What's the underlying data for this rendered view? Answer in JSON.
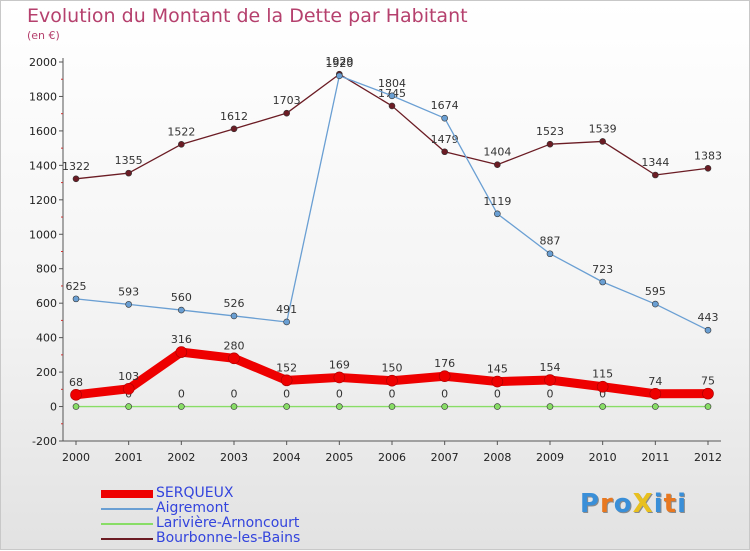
{
  "chart_data": {
    "type": "line",
    "title": "Evolution du Montant de la Dette par Habitant",
    "subtitle": "(en €)",
    "x": [
      "2000",
      "2001",
      "2002",
      "2003",
      "2004",
      "2005",
      "2006",
      "2007",
      "2008",
      "2009",
      "2010",
      "2011",
      "2012"
    ],
    "ylim": [
      -200,
      2000
    ],
    "yticks": [
      -200,
      0,
      200,
      400,
      600,
      800,
      1000,
      1200,
      1400,
      1600,
      1800,
      2000
    ],
    "grid": false,
    "legend": "bottom-left",
    "series": [
      {
        "name": "Bourbonne-les-Bains",
        "color": "#6b1c24",
        "values": [
          1322,
          1355,
          1522,
          1612,
          1703,
          1929,
          1745,
          1479,
          1404,
          1523,
          1539,
          1344,
          1383
        ]
      },
      {
        "name": "Aigremont",
        "color": "#6a9fd3",
        "values": [
          625,
          593,
          560,
          526,
          491,
          1920,
          1804,
          1674,
          1119,
          887,
          723,
          595,
          443
        ]
      },
      {
        "name": "Larivière-Arnoncourt",
        "color": "#88dd66",
        "values": [
          0,
          0,
          0,
          0,
          0,
          0,
          0,
          0,
          0,
          0,
          0,
          0,
          0
        ]
      },
      {
        "name": "SERQUEUX",
        "color": "#ee0000",
        "values": [
          68,
          103,
          316,
          280,
          152,
          169,
          150,
          176,
          145,
          154,
          115,
          74,
          75
        ]
      }
    ]
  },
  "legend_items": [
    {
      "label": "SERQUEUX",
      "color": "#ee0000"
    },
    {
      "label": "Aigremont",
      "color": "#6a9fd3"
    },
    {
      "label": "Larivière-Arnoncourt",
      "color": "#88dd66"
    },
    {
      "label": "Bourbonne-les-Bains",
      "color": "#6b1c24"
    }
  ],
  "logo": {
    "text": "ProXiti",
    "letters": [
      "P",
      "r",
      "o",
      "X",
      "i",
      "t",
      "i"
    ],
    "colors": [
      "#3a8fd8",
      "#e87820",
      "#3a8fd8",
      "#e8c020",
      "#3a8fd8",
      "#e87820",
      "#3a8fd8"
    ]
  }
}
